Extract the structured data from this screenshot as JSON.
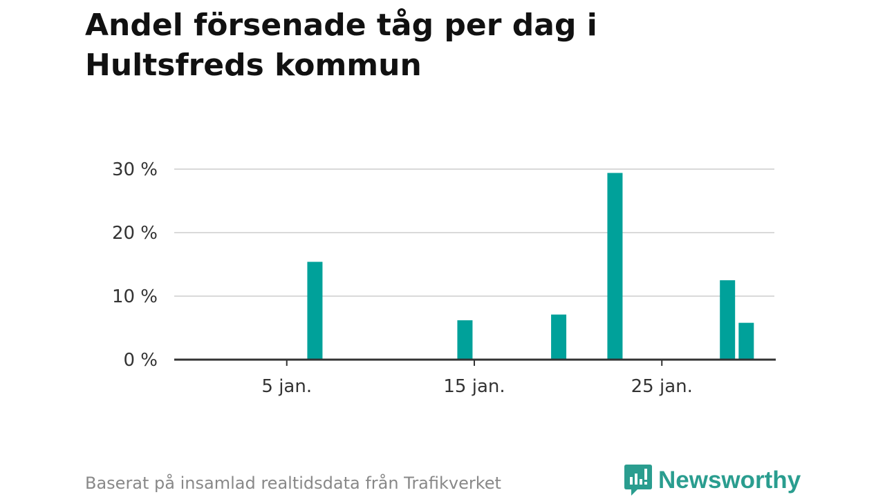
{
  "title": "Andel försenade tåg per dag i Hultsfreds kommun",
  "source": "Baserat på insamlad realtidsdata från Trafikverket",
  "logo": {
    "name": "Newsworthy",
    "icon": "newsworthy-logo-icon",
    "color": "#2a9d8f"
  },
  "colors": {
    "bar": "#00a19a",
    "grid": "#d9d9d9",
    "axis": "#333333"
  },
  "chart_data": {
    "type": "bar",
    "title": "Andel försenade tåg per dag i Hultsfreds kommun",
    "xlabel": "",
    "ylabel": "",
    "xlim": [
      "2024-12-30",
      "2025-01-31"
    ],
    "ylim": [
      0,
      30
    ],
    "yticks": [
      {
        "value": 0,
        "label": "0 %"
      },
      {
        "value": 10,
        "label": "10 %"
      },
      {
        "value": 20,
        "label": "20 %"
      },
      {
        "value": 30,
        "label": "30 %"
      }
    ],
    "xticks": [
      {
        "date": "2025-01-05",
        "label": "5 jan."
      },
      {
        "date": "2025-01-15",
        "label": "15 jan."
      },
      {
        "date": "2025-01-25",
        "label": "25 jan."
      }
    ],
    "x": [
      "2025-01-06",
      "2025-01-14",
      "2025-01-19",
      "2025-01-22",
      "2025-01-28",
      "2025-01-29"
    ],
    "values": [
      15.4,
      6.2,
      7.1,
      29.4,
      12.5,
      5.8
    ],
    "grid": true,
    "legend": "none"
  }
}
